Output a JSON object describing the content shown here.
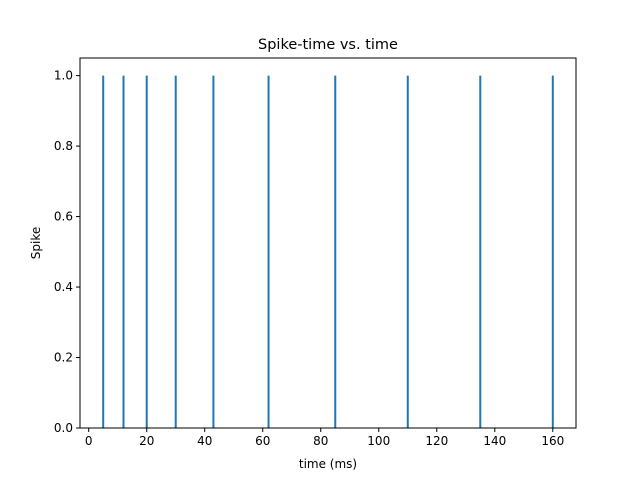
{
  "chart_data": {
    "type": "line",
    "title": "Spike-time vs. time",
    "xlabel": "time (ms)",
    "ylabel": "Spike",
    "xlim": [
      -3,
      168
    ],
    "ylim": [
      0.0,
      1.05
    ],
    "x_ticks": [
      0,
      20,
      40,
      60,
      80,
      100,
      120,
      140,
      160
    ],
    "y_ticks": [
      "0.0",
      "0.2",
      "0.4",
      "0.6",
      "0.8",
      "1.0"
    ],
    "grid": false,
    "series": [
      {
        "spike_times": [
          5,
          12,
          20,
          30,
          43,
          62,
          85,
          110,
          135,
          160
        ],
        "value": 1.0
      }
    ],
    "color": "#1f77b4"
  }
}
